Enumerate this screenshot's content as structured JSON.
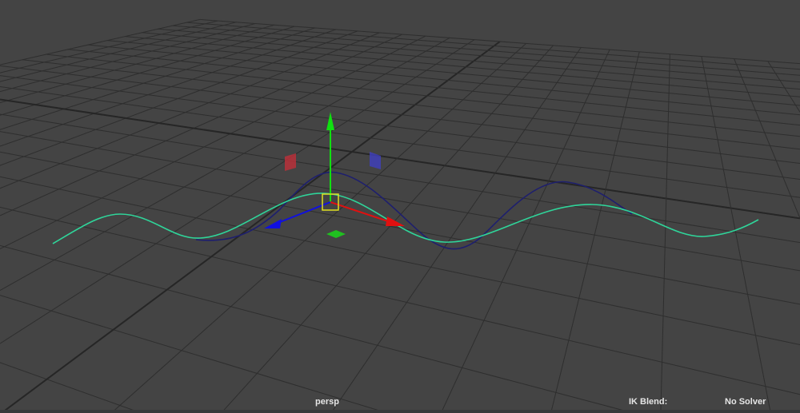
{
  "viewport": {
    "camera_label": "persp",
    "ik_blend_label": "IK Blend:",
    "solver_label": "No Solver",
    "background_color": "#444444",
    "grid_color": "#2e2e2e",
    "curve_color": "#2fd59a",
    "secondary_curve_color": "#1e1f6e",
    "manipulator": {
      "x_axis_color": "#e01010",
      "y_axis_color": "#10e010",
      "z_axis_color": "#1010e0",
      "center_color": "#e0e020"
    }
  }
}
